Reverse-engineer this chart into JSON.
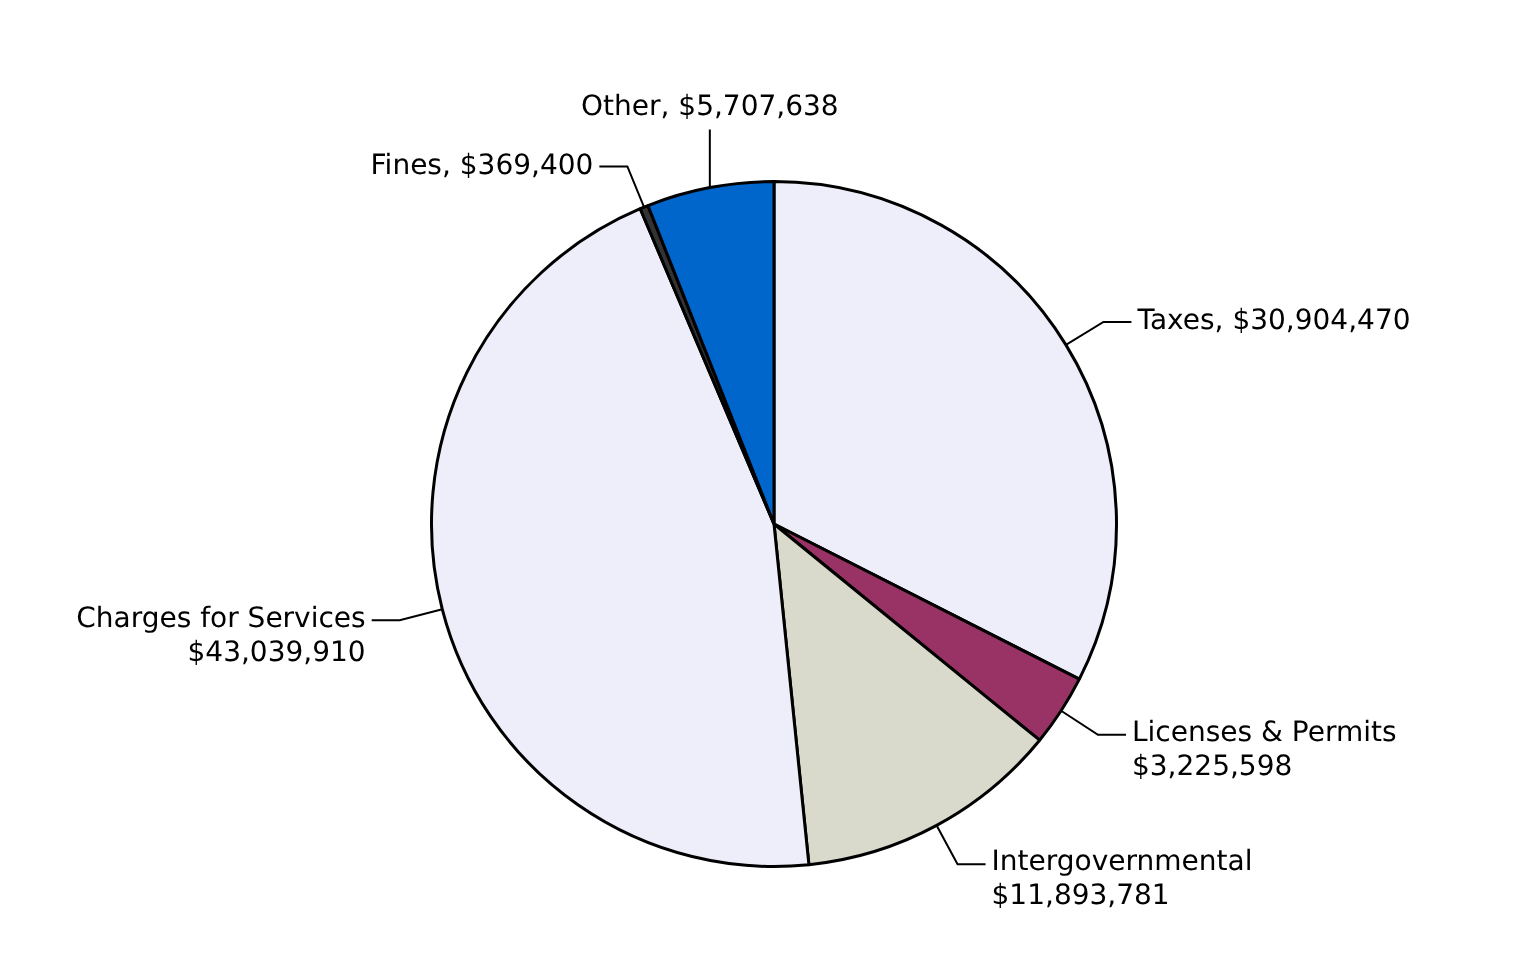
{
  "chart_data": {
    "type": "pie",
    "categories": [
      "Taxes",
      "Licenses & Permits",
      "Intergovernmental",
      "Charges for Services",
      "Fines",
      "Other"
    ],
    "values": [
      30904470,
      3225598,
      11893781,
      43039910,
      369400,
      5707638
    ],
    "value_labels": [
      "$30,904,470",
      "$3,225,598",
      "$11,893,781",
      "$43,039,910",
      "$369,400",
      "$5,707,638"
    ],
    "colors": [
      "#eeeefa",
      "#993366",
      "#d9d9cc",
      "#eeeefa",
      "#333333",
      "#0066cc"
    ],
    "legend": false
  }
}
